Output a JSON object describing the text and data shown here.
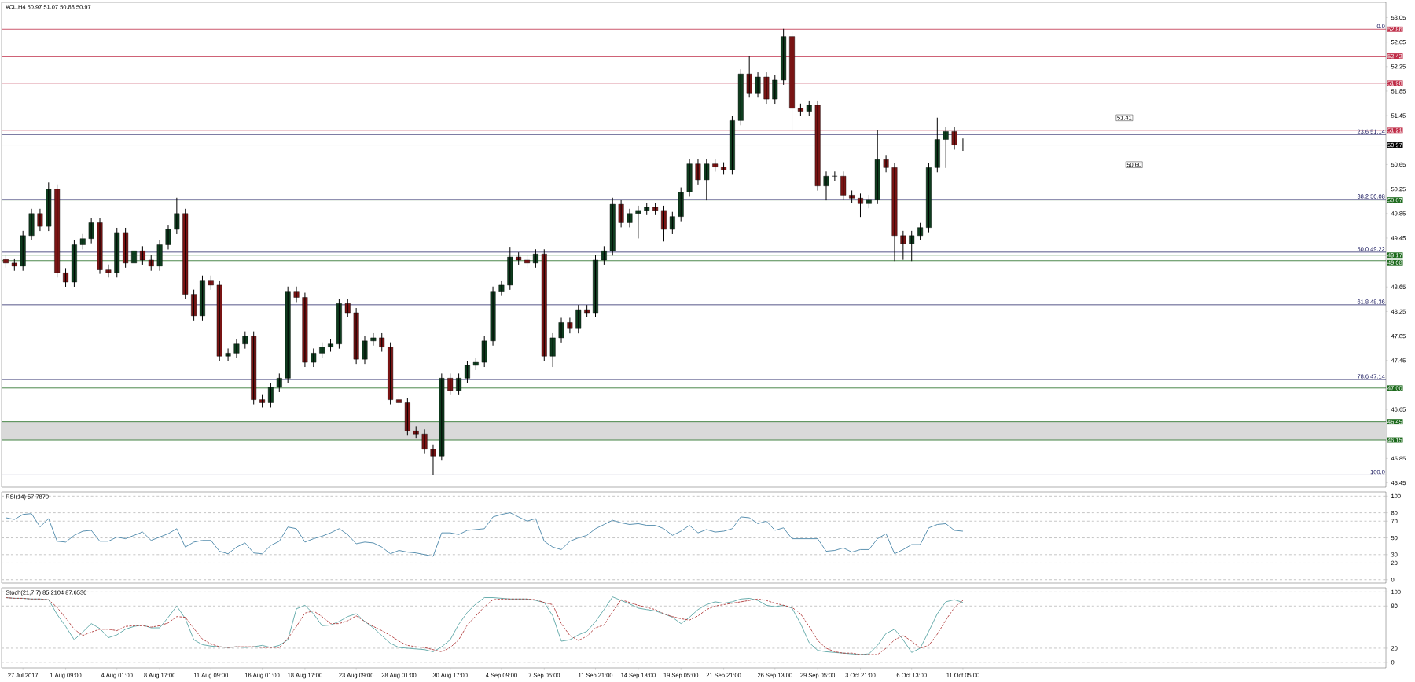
{
  "chart_data": [
    {
      "type": "candlestick",
      "title": "#CL,H4  50.97 51.07 50.88 50.97",
      "tick_labels": "y",
      "categories": [
        null,
        null,
        null,
        null,
        null,
        null,
        null,
        null,
        null,
        null,
        null,
        null,
        null,
        null,
        null,
        null,
        null,
        null,
        null,
        null,
        null,
        null,
        null,
        null,
        null,
        null,
        null,
        null,
        null,
        null,
        null,
        null,
        null,
        null,
        null,
        null,
        null,
        null,
        null,
        null,
        null,
        null,
        null,
        null,
        null,
        null,
        null,
        null,
        null,
        null,
        null,
        null,
        null,
        null,
        null,
        null,
        null,
        null,
        null,
        null,
        null,
        null,
        null,
        null,
        null,
        null,
        null,
        null,
        null,
        null,
        null,
        null,
        null,
        null,
        null,
        null,
        null,
        null,
        null,
        null,
        null,
        null,
        null,
        null,
        null,
        null,
        null,
        null,
        null,
        null,
        null,
        null,
        null,
        null,
        null,
        null,
        null,
        null,
        null,
        null,
        null,
        null,
        null,
        null,
        null,
        null,
        null,
        null,
        null,
        null,
        null,
        null,
        null,
        null,
        null,
        null,
        null,
        null,
        null,
        null,
        null,
        null,
        null,
        null,
        null,
        null,
        null,
        null,
        null,
        null,
        null,
        null,
        null,
        null,
        null,
        null,
        null,
        null,
        null,
        null,
        null,
        null,
        null,
        null,
        null,
        null,
        null,
        null,
        null,
        null,
        null,
        null,
        null,
        null,
        null,
        null,
        null,
        null,
        null,
        null,
        null,
        null
      ],
      "ohlc": [
        [
          49.1,
          49.17,
          48.97,
          49.04
        ],
        [
          49.04,
          49.11,
          48.92,
          48.99
        ],
        [
          48.99,
          49.56,
          48.92,
          49.49
        ],
        [
          49.49,
          49.92,
          49.42,
          49.85
        ],
        [
          49.85,
          49.92,
          49.57,
          49.64
        ],
        [
          49.64,
          50.35,
          49.57,
          50.25
        ],
        [
          50.25,
          50.32,
          48.81,
          48.88
        ],
        [
          48.88,
          48.95,
          48.66,
          48.73
        ],
        [
          48.73,
          49.41,
          48.66,
          49.34
        ],
        [
          49.34,
          49.51,
          49.27,
          49.44
        ],
        [
          49.44,
          49.77,
          49.37,
          49.7
        ],
        [
          49.7,
          49.77,
          48.87,
          48.94
        ],
        [
          48.94,
          49.01,
          48.81,
          48.88
        ],
        [
          48.88,
          49.61,
          48.81,
          49.54
        ],
        [
          49.54,
          49.61,
          48.97,
          49.04
        ],
        [
          49.04,
          49.31,
          48.97,
          49.24
        ],
        [
          49.24,
          49.31,
          49.02,
          49.09
        ],
        [
          49.09,
          49.16,
          48.92,
          48.99
        ],
        [
          48.99,
          49.41,
          48.92,
          49.34
        ],
        [
          49.34,
          49.66,
          49.27,
          49.59
        ],
        [
          49.59,
          50.1,
          49.52,
          49.85
        ],
        [
          49.85,
          49.92,
          48.46,
          48.53
        ],
        [
          48.53,
          48.6,
          48.11,
          48.18
        ],
        [
          48.18,
          48.83,
          48.11,
          48.76
        ],
        [
          48.76,
          48.83,
          48.61,
          48.68
        ],
        [
          48.68,
          48.75,
          47.45,
          47.52
        ],
        [
          47.52,
          47.64,
          47.45,
          47.57
        ],
        [
          47.57,
          47.79,
          47.5,
          47.72
        ],
        [
          47.72,
          47.92,
          47.65,
          47.85
        ],
        [
          47.85,
          47.92,
          46.74,
          46.81
        ],
        [
          46.81,
          46.88,
          46.69,
          46.76
        ],
        [
          46.76,
          47.08,
          46.69,
          47.01
        ],
        [
          47.01,
          47.23,
          46.94,
          47.16
        ],
        [
          47.16,
          48.65,
          47.09,
          48.58
        ],
        [
          48.58,
          48.65,
          48.41,
          48.48
        ],
        [
          48.48,
          48.55,
          47.35,
          47.42
        ],
        [
          47.42,
          47.64,
          47.35,
          47.57
        ],
        [
          47.57,
          47.74,
          47.5,
          47.67
        ],
        [
          47.67,
          47.79,
          47.6,
          47.72
        ],
        [
          47.72,
          48.45,
          47.65,
          48.38
        ],
        [
          48.38,
          48.45,
          48.16,
          48.23
        ],
        [
          48.23,
          48.3,
          47.4,
          47.47
        ],
        [
          47.47,
          47.84,
          47.4,
          47.77
        ],
        [
          47.77,
          47.89,
          47.7,
          47.82
        ],
        [
          47.82,
          47.89,
          47.6,
          47.67
        ],
        [
          47.67,
          47.74,
          46.74,
          46.81
        ],
        [
          46.81,
          46.88,
          46.69,
          46.76
        ],
        [
          46.76,
          46.83,
          46.23,
          46.3
        ],
        [
          46.3,
          46.37,
          46.18,
          46.25
        ],
        [
          46.25,
          46.32,
          45.93,
          46.0
        ],
        [
          46.0,
          46.07,
          45.58,
          45.89
        ],
        [
          45.89,
          47.23,
          45.82,
          47.16
        ],
        [
          47.16,
          47.23,
          46.89,
          46.96
        ],
        [
          46.96,
          47.23,
          46.89,
          47.16
        ],
        [
          47.16,
          47.44,
          47.09,
          47.37
        ],
        [
          47.37,
          47.49,
          47.3,
          47.42
        ],
        [
          47.42,
          47.84,
          47.35,
          47.77
        ],
        [
          47.77,
          48.65,
          47.7,
          48.58
        ],
        [
          48.58,
          48.75,
          48.51,
          48.68
        ],
        [
          48.68,
          49.3,
          48.61,
          49.14
        ],
        [
          49.14,
          49.21,
          49.02,
          49.09
        ],
        [
          49.09,
          49.16,
          48.97,
          49.04
        ],
        [
          49.04,
          49.26,
          48.97,
          49.19
        ],
        [
          49.19,
          49.26,
          47.45,
          47.52
        ],
        [
          47.52,
          47.89,
          47.35,
          47.82
        ],
        [
          47.82,
          48.14,
          47.75,
          48.07
        ],
        [
          48.07,
          48.14,
          47.9,
          47.97
        ],
        [
          47.97,
          48.35,
          47.9,
          48.28
        ],
        [
          48.28,
          48.35,
          48.16,
          48.23
        ],
        [
          48.23,
          49.16,
          48.16,
          49.09
        ],
        [
          49.09,
          49.31,
          49.02,
          49.24
        ],
        [
          49.24,
          50.1,
          49.17,
          50.0
        ],
        [
          50.0,
          50.07,
          49.63,
          49.7
        ],
        [
          49.7,
          49.92,
          49.63,
          49.85
        ],
        [
          49.85,
          49.97,
          49.45,
          49.9
        ],
        [
          49.9,
          50.02,
          49.83,
          49.95
        ],
        [
          49.95,
          50.02,
          49.83,
          49.9
        ],
        [
          49.9,
          49.97,
          49.4,
          49.59
        ],
        [
          49.59,
          49.87,
          49.52,
          49.8
        ],
        [
          49.8,
          50.27,
          49.73,
          50.2
        ],
        [
          50.2,
          50.73,
          50.13,
          50.66
        ],
        [
          50.66,
          50.73,
          50.33,
          50.4
        ],
        [
          50.4,
          50.73,
          50.07,
          50.66
        ],
        [
          50.66,
          50.73,
          50.54,
          50.61
        ],
        [
          50.61,
          50.68,
          50.49,
          50.56
        ],
        [
          50.56,
          51.44,
          50.49,
          51.37
        ],
        [
          51.37,
          52.2,
          51.3,
          52.13
        ],
        [
          52.13,
          52.42,
          51.75,
          51.82
        ],
        [
          51.82,
          52.15,
          51.75,
          52.08
        ],
        [
          52.08,
          52.15,
          51.65,
          51.72
        ],
        [
          51.72,
          52.1,
          51.65,
          52.03
        ],
        [
          52.03,
          52.86,
          51.96,
          52.74
        ],
        [
          52.74,
          52.81,
          51.21,
          51.57
        ],
        [
          51.57,
          51.64,
          51.45,
          51.52
        ],
        [
          51.52,
          51.69,
          51.45,
          51.62
        ],
        [
          51.62,
          51.69,
          50.23,
          50.3
        ],
        [
          50.3,
          50.53,
          50.07,
          50.46
        ],
        [
          50.46,
          50.53,
          50.39,
          50.46
        ],
        [
          50.46,
          50.53,
          50.08,
          50.15
        ],
        [
          50.15,
          50.22,
          50.03,
          50.1
        ],
        [
          50.1,
          50.17,
          49.8,
          50.01
        ],
        [
          50.01,
          50.15,
          49.94,
          50.08
        ],
        [
          50.08,
          51.21,
          50.01,
          50.73
        ],
        [
          50.73,
          50.8,
          50.53,
          50.6
        ],
        [
          50.6,
          50.67,
          49.08,
          49.49
        ],
        [
          49.49,
          49.56,
          49.1,
          49.36
        ],
        [
          49.36,
          49.56,
          49.08,
          49.49
        ],
        [
          49.49,
          49.69,
          49.42,
          49.62
        ],
        [
          49.62,
          50.67,
          49.55,
          50.6
        ],
        [
          50.6,
          51.41,
          50.53,
          51.06
        ],
        [
          51.06,
          51.26,
          50.6,
          51.19
        ],
        [
          51.19,
          51.26,
          50.9,
          50.97
        ],
        [
          50.97,
          51.07,
          50.88,
          50.97
        ],
        null,
        null,
        null,
        null,
        null,
        null,
        null,
        null,
        null,
        null,
        null,
        null,
        null,
        null,
        null,
        null,
        null,
        null,
        null,
        null,
        null,
        null,
        null,
        null,
        null,
        null,
        null,
        null,
        null,
        null,
        null,
        null,
        null,
        null,
        null,
        null,
        null,
        null,
        null,
        null,
        null,
        null,
        null,
        null,
        null,
        null,
        null,
        null,
        null
      ],
      "ylim": [
        45.38,
        53.3
      ],
      "yticks": [
        53.05,
        52.65,
        52.25,
        51.85,
        51.45,
        50.65,
        50.25,
        49.85,
        49.45,
        48.65,
        48.25,
        47.85,
        47.45,
        46.65,
        45.85,
        45.45
      ],
      "ref_lines": [
        {
          "axis": "y",
          "value": 52.86,
          "label": "52.86",
          "color": "#c0304a"
        },
        {
          "axis": "y",
          "value": 52.42,
          "label": "52.42",
          "color": "#c0304a"
        },
        {
          "axis": "y",
          "value": 51.98,
          "label": "51.98",
          "color": "#c0304a"
        },
        {
          "axis": "y",
          "value": 51.21,
          "label": "51.21",
          "color": "#c0304a"
        },
        {
          "axis": "y",
          "value": 50.97,
          "label": "50.97",
          "color": "#000000"
        },
        {
          "axis": "y",
          "value": 50.07,
          "label": "50.07",
          "color": "#1e6b1e"
        },
        {
          "axis": "y",
          "value": 49.17,
          "label": "49.17",
          "color": "#1e6b1e"
        },
        {
          "axis": "y",
          "value": 49.08,
          "label": "49.08",
          "color": "#1e6b1e"
        },
        {
          "axis": "y",
          "value": 47.0,
          "label": "47.00",
          "color": "#1e6b1e"
        },
        {
          "axis": "y",
          "value": 46.45,
          "label": "46.45",
          "color": "#1e6b1e"
        },
        {
          "axis": "y",
          "value": 46.15,
          "label": "46.15",
          "color": "#1e6b1e"
        },
        {
          "axis": "y",
          "value": 51.14,
          "color": "#2b2b6b"
        },
        {
          "axis": "y",
          "value": 50.08,
          "color": "#2b2b6b"
        },
        {
          "axis": "y",
          "value": 49.22,
          "color": "#2b2b6b"
        },
        {
          "axis": "y",
          "value": 48.36,
          "color": "#2b2b6b"
        },
        {
          "axis": "y",
          "value": 47.14,
          "color": "#2b2b6b"
        },
        {
          "axis": "y",
          "value": 45.58,
          "color": "#2b2b6b"
        }
      ],
      "bands": [
        {
          "axis": "y",
          "from": 46.15,
          "to": 46.45,
          "color": "#d9d9d9"
        }
      ],
      "annotations": [
        {
          "text": "0.0",
          "y": 52.86
        },
        {
          "text": "23.6 51.14",
          "y": 51.14
        },
        {
          "text": "38.2 50.08",
          "y": 50.08
        },
        {
          "text": "50.0 49.22",
          "y": 49.22
        },
        {
          "text": "61.8 48.36",
          "y": 48.36
        },
        {
          "text": "78.6 47.14",
          "y": 47.14
        },
        {
          "text": "100.0",
          "y": 45.58
        },
        "51.41",
        "50.60"
      ]
    },
    {
      "type": "line",
      "title": "RSI(14) 57.7870",
      "tick_labels": "y",
      "grid": "y",
      "categories": [
        null,
        null,
        null,
        null,
        null,
        null,
        null,
        null,
        null,
        null,
        null,
        null,
        null,
        null,
        null,
        null,
        null,
        null,
        null,
        null,
        null,
        null,
        null,
        null,
        null,
        null,
        null,
        null,
        null,
        null,
        null,
        null,
        null,
        null,
        null,
        null,
        null,
        null,
        null,
        null,
        null,
        null,
        null,
        null,
        null,
        null,
        null,
        null,
        null,
        null,
        null,
        null,
        null,
        null,
        null,
        null,
        null,
        null,
        null,
        null,
        null,
        null,
        null,
        null,
        null,
        null,
        null,
        null,
        null,
        null,
        null,
        null,
        null,
        null,
        null,
        null,
        null,
        null,
        null,
        null,
        null,
        null,
        null,
        null,
        null,
        null,
        null,
        null,
        null,
        null,
        null,
        null,
        null,
        null,
        null,
        null,
        null,
        null,
        null,
        null,
        null,
        null,
        null,
        null,
        null,
        null,
        null,
        null,
        null,
        null,
        null,
        null,
        null,
        null,
        null,
        null,
        null,
        null,
        null,
        null,
        null,
        null,
        null,
        null,
        null,
        null,
        null,
        null,
        null,
        null,
        null,
        null,
        null,
        null,
        null,
        null,
        null,
        null,
        null,
        null,
        null,
        null,
        null,
        null,
        null,
        null,
        null,
        null,
        null,
        null,
        null,
        null,
        null,
        null,
        null,
        null,
        null,
        null,
        null,
        null,
        null,
        null
      ],
      "series": [
        {
          "color": "#4a86a8",
          "values": [
            74,
            72,
            78,
            79,
            63,
            73,
            46,
            45,
            53,
            58,
            59,
            46,
            46,
            51,
            49,
            53,
            57,
            47,
            51,
            55,
            61,
            39,
            45,
            47,
            47,
            34,
            31,
            39,
            44,
            32,
            31,
            41,
            46,
            63,
            61,
            45,
            49,
            52,
            56,
            61,
            54,
            43,
            45,
            44,
            39,
            31,
            35,
            33,
            32,
            30,
            28,
            56,
            56,
            54,
            59,
            60,
            61,
            75,
            78,
            80,
            75,
            70,
            73,
            46,
            39,
            36,
            46,
            50,
            53,
            61,
            66,
            71,
            68,
            66,
            67,
            65,
            65,
            61,
            53,
            58,
            65,
            56,
            60,
            57,
            58,
            61,
            75,
            74,
            67,
            70,
            59,
            62,
            49,
            49,
            49,
            49,
            34,
            35,
            38,
            33,
            36,
            36,
            49,
            55,
            31,
            36,
            42,
            42,
            62,
            66,
            67,
            59,
            58,
            null,
            null,
            null,
            null,
            null,
            null,
            null,
            null,
            null,
            null,
            null,
            null,
            null,
            null,
            null,
            null,
            null,
            null,
            null,
            null,
            null,
            null,
            null,
            null,
            null,
            null,
            null,
            null,
            null,
            null,
            null,
            null,
            null,
            null,
            null,
            null,
            null,
            null,
            null,
            null,
            null,
            null,
            null,
            null,
            null,
            null,
            null,
            null,
            null
          ]
        }
      ],
      "ylim": [
        -4,
        105
      ],
      "yticks": [
        100,
        80,
        70,
        50,
        30,
        20,
        0
      ]
    },
    {
      "type": "line",
      "title": "Stoch(21,7,7) 85.2104 87.6536",
      "grid": "y",
      "categories": [
        null,
        null,
        "27 Jul 2017",
        null,
        null,
        null,
        null,
        "1 Aug 09:00",
        null,
        null,
        null,
        null,
        null,
        "4 Aug 01:00",
        null,
        null,
        null,
        null,
        "8 Aug 17:00",
        null,
        null,
        null,
        null,
        null,
        "11 Aug 09:00",
        null,
        null,
        null,
        null,
        null,
        "16 Aug 01:00",
        null,
        null,
        null,
        null,
        "18 Aug 17:00",
        null,
        null,
        null,
        null,
        null,
        "23 Aug 09:00",
        null,
        null,
        null,
        null,
        "28 Aug 01:00",
        null,
        null,
        null,
        null,
        null,
        "30 Aug 17:00",
        null,
        null,
        null,
        null,
        null,
        "4 Sep 09:00",
        null,
        null,
        null,
        null,
        "7 Sep 05:00",
        null,
        null,
        null,
        null,
        null,
        "11 Sep 21:00",
        null,
        null,
        null,
        null,
        "14 Sep 13:00",
        null,
        null,
        null,
        null,
        "19 Sep 05:00",
        null,
        null,
        null,
        null,
        "21 Sep 21:00",
        null,
        null,
        null,
        null,
        null,
        "26 Sep 13:00",
        null,
        null,
        null,
        null,
        "29 Sep 05:00",
        null,
        null,
        null,
        null,
        "3 Oct 21:00",
        null,
        null,
        null,
        null,
        null,
        "6 Oct 13:00",
        null,
        null,
        null,
        null,
        null,
        "11 Oct 05:00",
        null,
        null,
        null,
        null,
        null,
        null,
        null,
        null,
        null,
        null,
        null,
        null,
        null,
        null,
        null,
        null,
        null,
        null,
        null,
        null,
        null,
        null,
        null,
        null,
        null,
        null,
        null,
        null,
        null,
        null,
        null,
        null,
        null,
        null,
        null,
        null,
        null,
        null,
        null,
        null,
        null,
        null,
        null,
        null,
        null,
        null,
        null,
        null,
        null
      ],
      "series": [
        {
          "color": "#5aa5a5",
          "line_style": "solid",
          "values": [
            92,
            91,
            91,
            90,
            90,
            89,
            68,
            51,
            32,
            43,
            55,
            48,
            35,
            39,
            47,
            51,
            53,
            49,
            49,
            64,
            80,
            62,
            32,
            25,
            23,
            22,
            21,
            22,
            21,
            22,
            24,
            21,
            24,
            32,
            76,
            81,
            69,
            52,
            53,
            58,
            65,
            69,
            58,
            49,
            38,
            27,
            21,
            20,
            19,
            18,
            15,
            22,
            32,
            54,
            71,
            83,
            92,
            92,
            91,
            90,
            90,
            90,
            88,
            85,
            66,
            30,
            32,
            39,
            44,
            58,
            75,
            93,
            88,
            83,
            77,
            75,
            73,
            69,
            64,
            55,
            64,
            75,
            82,
            86,
            84,
            86,
            90,
            91,
            88,
            81,
            79,
            81,
            77,
            55,
            28,
            17,
            15,
            14,
            13,
            12,
            11,
            12,
            24,
            41,
            47,
            32,
            14,
            20,
            44,
            69,
            86,
            89,
            85,
            null,
            null,
            null,
            null,
            null,
            null,
            null,
            null,
            null,
            null,
            null,
            null,
            null,
            null,
            null,
            null,
            null,
            null,
            null,
            null,
            null,
            null,
            null,
            null,
            null,
            null,
            null,
            null,
            null,
            null,
            null,
            null,
            null,
            null,
            null,
            null,
            null,
            null,
            null,
            null,
            null,
            null,
            null,
            null,
            null,
            null,
            null,
            null,
            null
          ]
        },
        {
          "color": "#b03a3a",
          "line_style": "dashed",
          "values": [
            92,
            91,
            91,
            90,
            90,
            89,
            78,
            63,
            47,
            38,
            43,
            47,
            47,
            45,
            51,
            52,
            52,
            50,
            52,
            56,
            65,
            64,
            48,
            33,
            26,
            22,
            21,
            22,
            22,
            22,
            21,
            21,
            21,
            34,
            51,
            70,
            73,
            65,
            55,
            55,
            59,
            66,
            58,
            51,
            45,
            38,
            30,
            24,
            22,
            21,
            18,
            15,
            21,
            32,
            53,
            66,
            79,
            89,
            90,
            90,
            90,
            90,
            89,
            85,
            82,
            55,
            38,
            31,
            37,
            49,
            53,
            72,
            89,
            85,
            81,
            78,
            75,
            69,
            65,
            62,
            60,
            66,
            75,
            80,
            82,
            84,
            86,
            88,
            90,
            88,
            84,
            81,
            78,
            69,
            51,
            31,
            20,
            15,
            13,
            13,
            11,
            11,
            11,
            20,
            32,
            38,
            30,
            20,
            24,
            40,
            60,
            78,
            88,
            null,
            null,
            null,
            null,
            null,
            null,
            null,
            null,
            null,
            null,
            null,
            null,
            null,
            null,
            null,
            null,
            null,
            null,
            null,
            null,
            null,
            null,
            null,
            null,
            null,
            null,
            null,
            null,
            null,
            null,
            null,
            null,
            null,
            null,
            null,
            null,
            null,
            null,
            null,
            null,
            null,
            null,
            null,
            null,
            null,
            null,
            null,
            null,
            null
          ]
        }
      ],
      "ylim": [
        -8,
        106
      ],
      "yticks": [
        100,
        80,
        20,
        0
      ]
    }
  ]
}
